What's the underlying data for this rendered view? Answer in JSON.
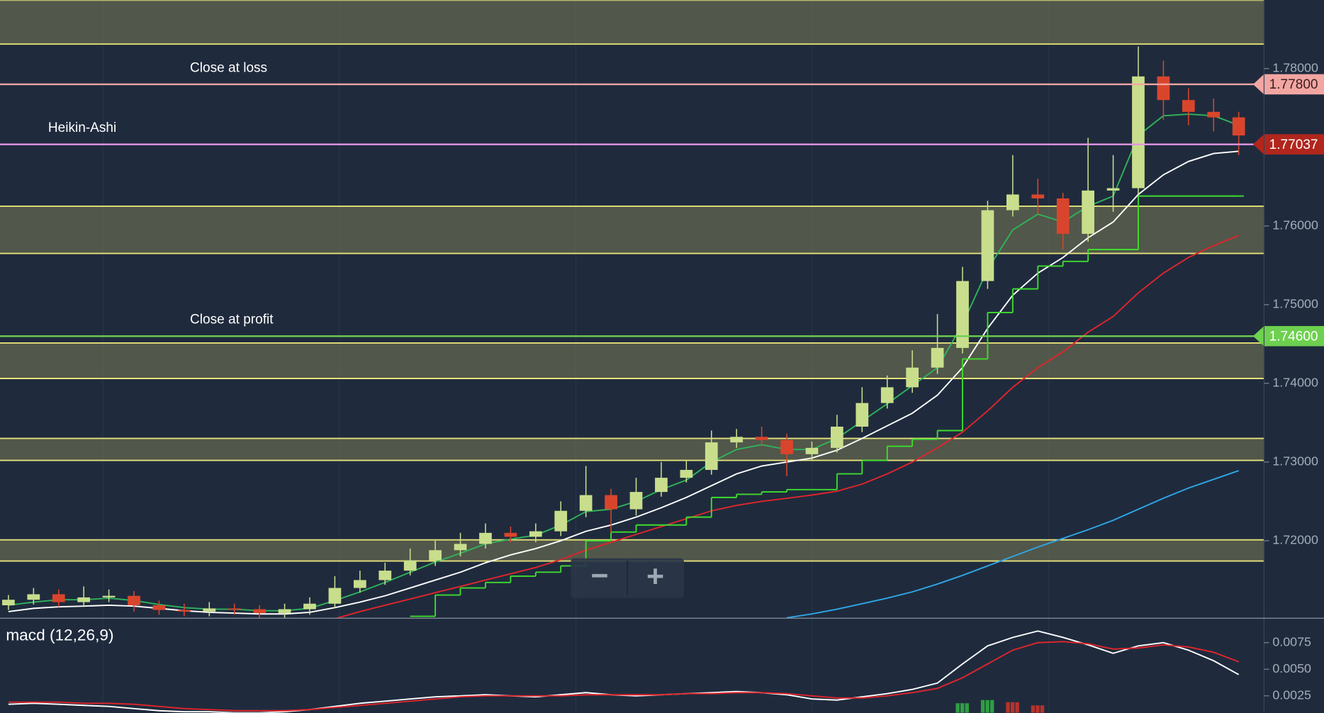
{
  "chart_data": [
    {
      "type": "candlestick",
      "open": [
        1.7118,
        1.7125,
        1.7132,
        1.7122,
        1.7128,
        1.713,
        1.7118,
        1.7112,
        1.711,
        1.7114,
        1.7113,
        1.7108,
        1.7113,
        1.712,
        1.714,
        1.715,
        1.7162,
        1.7175,
        1.7188,
        1.7196,
        1.721,
        1.7205,
        1.7212,
        1.7238,
        1.7258,
        1.724,
        1.7262,
        1.728,
        1.729,
        1.7325,
        1.7332,
        1.7328,
        1.731,
        1.7318,
        1.7345,
        1.7375,
        1.7395,
        1.742,
        1.7445,
        1.753,
        1.762,
        1.764,
        1.7635,
        1.759,
        1.7645,
        1.7648,
        1.779,
        1.776,
        1.7745,
        1.7738
      ],
      "high": [
        1.7131,
        1.714,
        1.7138,
        1.7142,
        1.7138,
        1.7136,
        1.7124,
        1.712,
        1.7122,
        1.712,
        1.7118,
        1.712,
        1.7128,
        1.7155,
        1.7162,
        1.7172,
        1.719,
        1.72,
        1.721,
        1.7222,
        1.7218,
        1.7222,
        1.725,
        1.7295,
        1.7266,
        1.728,
        1.73,
        1.7302,
        1.734,
        1.7342,
        1.7345,
        1.7336,
        1.7326,
        1.736,
        1.7395,
        1.741,
        1.7442,
        1.7488,
        1.7548,
        1.7632,
        1.769,
        1.766,
        1.7642,
        1.7712,
        1.769,
        1.7828,
        1.781,
        1.7775,
        1.7762,
        1.7745
      ],
      "low": [
        1.7112,
        1.7119,
        1.7116,
        1.7116,
        1.7122,
        1.711,
        1.7106,
        1.7104,
        1.7104,
        1.7106,
        1.7102,
        1.7102,
        1.7106,
        1.7114,
        1.7134,
        1.7144,
        1.7156,
        1.7168,
        1.718,
        1.719,
        1.7198,
        1.7198,
        1.7206,
        1.723,
        1.721,
        1.7232,
        1.7256,
        1.7274,
        1.7284,
        1.7318,
        1.732,
        1.7282,
        1.7302,
        1.7312,
        1.7338,
        1.7368,
        1.7388,
        1.7412,
        1.7438,
        1.752,
        1.7612,
        1.7615,
        1.757,
        1.758,
        1.7618,
        1.764,
        1.7735,
        1.7728,
        1.772,
        1.769
      ],
      "close": [
        1.7125,
        1.7132,
        1.7122,
        1.7128,
        1.713,
        1.7118,
        1.7112,
        1.711,
        1.7114,
        1.7113,
        1.7108,
        1.7113,
        1.712,
        1.714,
        1.715,
        1.7162,
        1.7175,
        1.7188,
        1.7196,
        1.721,
        1.7205,
        1.7212,
        1.7238,
        1.7258,
        1.724,
        1.7262,
        1.728,
        1.729,
        1.7325,
        1.7332,
        1.7328,
        1.731,
        1.7318,
        1.7345,
        1.7375,
        1.7395,
        1.742,
        1.7445,
        1.753,
        1.762,
        1.764,
        1.7635,
        1.759,
        1.7645,
        1.7648,
        1.779,
        1.776,
        1.7745,
        1.7738,
        1.7715
      ],
      "up_color": "#c9de8c",
      "down_color": "#d9452c",
      "ylim": [
        1.71015,
        1.78869
      ],
      "yticks": [
        {
          "value": 1.72,
          "label": "1.72000"
        },
        {
          "value": 1.73,
          "label": "1.73000"
        },
        {
          "value": 1.74,
          "label": "1.74000"
        },
        {
          "value": 1.75,
          "label": "1.75000"
        },
        {
          "value": 1.76,
          "label": "1.76000"
        },
        {
          "value": 1.78,
          "label": "1.78000"
        }
      ],
      "zones": [
        [
          1.78311,
          1.78869
        ],
        [
          1.75651,
          1.76251
        ],
        [
          1.74062,
          1.74513
        ],
        [
          1.73021,
          1.733
        ],
        [
          1.71742,
          1.72011
        ]
      ],
      "zone_color": "#e6e27a",
      "overlays": [
        {
          "color": "#2fb35a",
          "step": false,
          "values": [
            1.7118,
            1.7122,
            1.7125,
            1.7125,
            1.7127,
            1.7124,
            1.7119,
            1.7115,
            1.7113,
            1.7113,
            1.7111,
            1.7111,
            1.7114,
            1.7124,
            1.7135,
            1.7147,
            1.716,
            1.7173,
            1.7184,
            1.7196,
            1.7202,
            1.7207,
            1.722,
            1.7237,
            1.724,
            1.725,
            1.7265,
            1.7277,
            1.73,
            1.7316,
            1.7322,
            1.7316,
            1.7316,
            1.733,
            1.7352,
            1.7374,
            1.7397,
            1.742,
            1.7475,
            1.7545,
            1.7595,
            1.7615,
            1.7605,
            1.7625,
            1.7638,
            1.7715,
            1.774,
            1.7742,
            1.774,
            1.7728
          ]
        },
        {
          "color": "#ffffff",
          "step": false,
          "values": [
            1.711,
            1.7114,
            1.7116,
            1.7117,
            1.7118,
            1.7117,
            1.7114,
            1.7111,
            1.7109,
            1.7108,
            1.7107,
            1.7107,
            1.7109,
            1.7115,
            1.7122,
            1.713,
            1.714,
            1.715,
            1.716,
            1.7172,
            1.7182,
            1.719,
            1.72,
            1.7212,
            1.722,
            1.723,
            1.7242,
            1.7255,
            1.727,
            1.7285,
            1.7295,
            1.73,
            1.7305,
            1.7315,
            1.733,
            1.7346,
            1.7362,
            1.7385,
            1.742,
            1.747,
            1.7512,
            1.754,
            1.756,
            1.7585,
            1.7605,
            1.764,
            1.7665,
            1.7682,
            1.7692,
            1.7695
          ]
        },
        {
          "color": "#e0252b",
          "step": false,
          "values": [
            null,
            null,
            null,
            null,
            null,
            null,
            null,
            null,
            null,
            null,
            null,
            null,
            null,
            1.7101,
            1.711,
            1.7118,
            1.7126,
            1.7134,
            1.7142,
            1.715,
            1.7158,
            1.7166,
            1.7176,
            1.7188,
            1.7198,
            1.7208,
            1.7218,
            1.7228,
            1.7238,
            1.7245,
            1.725,
            1.7254,
            1.7258,
            1.7263,
            1.7272,
            1.7285,
            1.73,
            1.7318,
            1.7338,
            1.7365,
            1.7395,
            1.742,
            1.744,
            1.7465,
            1.7485,
            1.7515,
            1.754,
            1.756,
            1.7575,
            1.7588
          ]
        },
        {
          "color": "#2fa6e6",
          "step": false,
          "values": [
            null,
            null,
            null,
            null,
            null,
            null,
            null,
            null,
            null,
            null,
            null,
            null,
            null,
            null,
            null,
            null,
            null,
            null,
            null,
            null,
            null,
            null,
            null,
            null,
            null,
            null,
            null,
            null,
            null,
            null,
            null,
            1.7102,
            1.7107,
            1.7113,
            1.712,
            1.7127,
            1.7135,
            1.7145,
            1.7156,
            1.7168,
            1.718,
            1.7192,
            1.7203,
            1.7214,
            1.7226,
            1.724,
            1.7254,
            1.7267,
            1.7278,
            1.7289
          ]
        },
        {
          "color": "#3fdc2e",
          "step": true,
          "values": [
            null,
            null,
            null,
            null,
            null,
            null,
            null,
            null,
            null,
            null,
            null,
            null,
            null,
            null,
            null,
            null,
            1.7104,
            1.7131,
            1.714,
            1.7147,
            1.7155,
            1.716,
            1.7168,
            1.72,
            1.7211,
            1.722,
            1.722,
            1.723,
            1.7255,
            1.7259,
            1.7262,
            1.7265,
            1.7265,
            1.7285,
            1.7302,
            1.732,
            1.7329,
            1.734,
            1.7431,
            1.749,
            1.752,
            1.7549,
            1.7555,
            1.757,
            1.757,
            1.7638,
            1.7638,
            1.7638,
            1.7638,
            1.7638
          ]
        }
      ],
      "price_lines": [
        {
          "text": "Close at loss",
          "price": {
            "value": 1.778,
            "label": "1.77800"
          },
          "color": "#f2a6a2",
          "text_color": "#3a1d1d"
        },
        {
          "text": "Heikin-Ashi",
          "price": {
            "value": 1.77037,
            "label": "1.77037"
          },
          "color": "#e397e6",
          "tag_color": "#b1261d",
          "text_color": "#ffffff"
        },
        {
          "text": "Close at profit",
          "price": {
            "value": 1.746,
            "label": "1.74600"
          },
          "color": "#6dd04f",
          "text_color": "#ffffff"
        }
      ]
    },
    {
      "type": "line",
      "title": "macd (12,26,9)",
      "ylim": [
        0.0009,
        0.0098
      ],
      "yticks": [
        0.0075,
        {
          "value": 0.005,
          "label": "0.0050"
        },
        0.0025
      ],
      "series": [
        {
          "color": "#ffffff",
          "values": [
            0.0017,
            0.0018,
            0.0017,
            0.0016,
            0.0015,
            0.0013,
            0.0011,
            0.001,
            0.001,
            0.0009,
            0.0009,
            0.001,
            0.0012,
            0.0015,
            0.0018,
            0.002,
            0.0022,
            0.0024,
            0.0025,
            0.0026,
            0.0025,
            0.0024,
            0.0026,
            0.0028,
            0.0026,
            0.0025,
            0.0026,
            0.0027,
            0.0028,
            0.0029,
            0.0028,
            0.0026,
            0.0022,
            0.0021,
            0.0024,
            0.0027,
            0.0031,
            0.0037,
            0.0055,
            0.0072,
            0.008,
            0.0086,
            0.008,
            0.0073,
            0.0065,
            0.0072,
            0.0075,
            0.0068,
            0.0058,
            0.0045
          ]
        },
        {
          "color": "#e0252b",
          "values": [
            0.0019,
            0.0019,
            0.0019,
            0.0018,
            0.0018,
            0.0017,
            0.0015,
            0.0013,
            0.0012,
            0.0011,
            0.0011,
            0.0011,
            0.0012,
            0.0014,
            0.0016,
            0.0018,
            0.002,
            0.0022,
            0.0024,
            0.0025,
            0.0025,
            0.0025,
            0.0025,
            0.0026,
            0.0026,
            0.0026,
            0.0026,
            0.0027,
            0.0027,
            0.0028,
            0.0028,
            0.0027,
            0.0025,
            0.0023,
            0.0023,
            0.0025,
            0.0028,
            0.0032,
            0.0042,
            0.0055,
            0.0068,
            0.0075,
            0.0076,
            0.0074,
            0.0069,
            0.007,
            0.0073,
            0.0071,
            0.0066,
            0.0057
          ]
        }
      ],
      "histogram": [
        null,
        null,
        null,
        null,
        null,
        null,
        null,
        null,
        null,
        null,
        null,
        null,
        null,
        null,
        null,
        null,
        null,
        null,
        null,
        null,
        null,
        null,
        null,
        null,
        null,
        null,
        null,
        null,
        null,
        null,
        null,
        null,
        null,
        null,
        null,
        null,
        null,
        null,
        0.0018,
        0.0021,
        0.0019,
        0.0016,
        null,
        null,
        null,
        null,
        null,
        null,
        null,
        null
      ],
      "histogram_up_color": "#2f9e44",
      "histogram_down_color": "#b8322a"
    }
  ],
  "controls": {
    "zoom_out": "−",
    "zoom_in": "+"
  }
}
